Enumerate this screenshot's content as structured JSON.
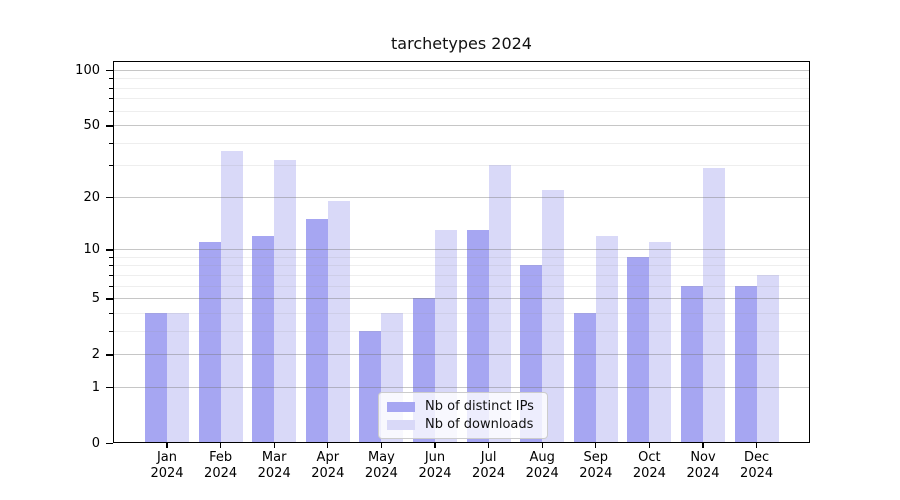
{
  "title": "tarchetypes 2024",
  "chart_data": {
    "type": "bar",
    "title": "tarchetypes 2024",
    "categories": [
      "Jan",
      "Feb",
      "Mar",
      "Apr",
      "May",
      "Jun",
      "Jul",
      "Aug",
      "Sep",
      "Oct",
      "Nov",
      "Dec"
    ],
    "category_year": "2024",
    "series": [
      {
        "name": "Nb of distinct IPs",
        "color": "#a6a6f2",
        "values": [
          4,
          11,
          12,
          15,
          3,
          5,
          13,
          8,
          4,
          9,
          6,
          6
        ]
      },
      {
        "name": "Nb of downloads",
        "color": "#d9d9f8",
        "values": [
          4,
          36,
          32,
          19,
          4,
          13,
          30,
          22,
          12,
          11,
          29,
          7
        ]
      }
    ],
    "yscale": "log1p",
    "ylim": [
      0,
      100
    ],
    "yticks": [
      0,
      1,
      2,
      5,
      10,
      20,
      50,
      100
    ],
    "yticks_minor": [
      3,
      4,
      6,
      7,
      8,
      9,
      30,
      40,
      60,
      70,
      80,
      90
    ],
    "grid": true,
    "legend_position": "lower center",
    "xlabel": "",
    "ylabel": ""
  },
  "colors": {
    "grid_major": "rgba(120,120,120,0.42)",
    "grid_minor": "rgba(150,150,150,0.16)",
    "spine": "#000000",
    "background": "#ffffff"
  }
}
